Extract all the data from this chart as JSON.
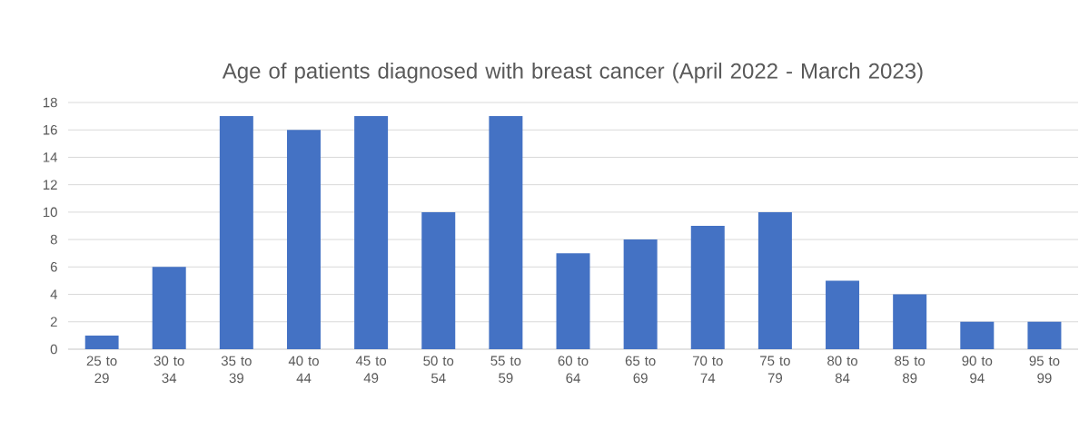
{
  "chart_data": {
    "type": "bar",
    "title": "Age of patients diagnosed with breast cancer (April 2022 - March 2023)",
    "categories": [
      "25 to 29",
      "30 to 34",
      "35 to 39",
      "40 to 44",
      "45 to 49",
      "50 to 54",
      "55 to 59",
      "60 to 64",
      "65 to 69",
      "70 to 74",
      "75 to 79",
      "80 to 84",
      "85 to 89",
      "90 to 94",
      "95 to 99"
    ],
    "values": [
      1,
      6,
      17,
      16,
      17,
      10,
      17,
      7,
      8,
      9,
      10,
      5,
      4,
      2,
      2
    ],
    "color": "#4472c4",
    "ylim": [
      0,
      18
    ],
    "yticks": [
      0,
      2,
      4,
      6,
      8,
      10,
      12,
      14,
      16,
      18
    ],
    "grid": "y"
  }
}
